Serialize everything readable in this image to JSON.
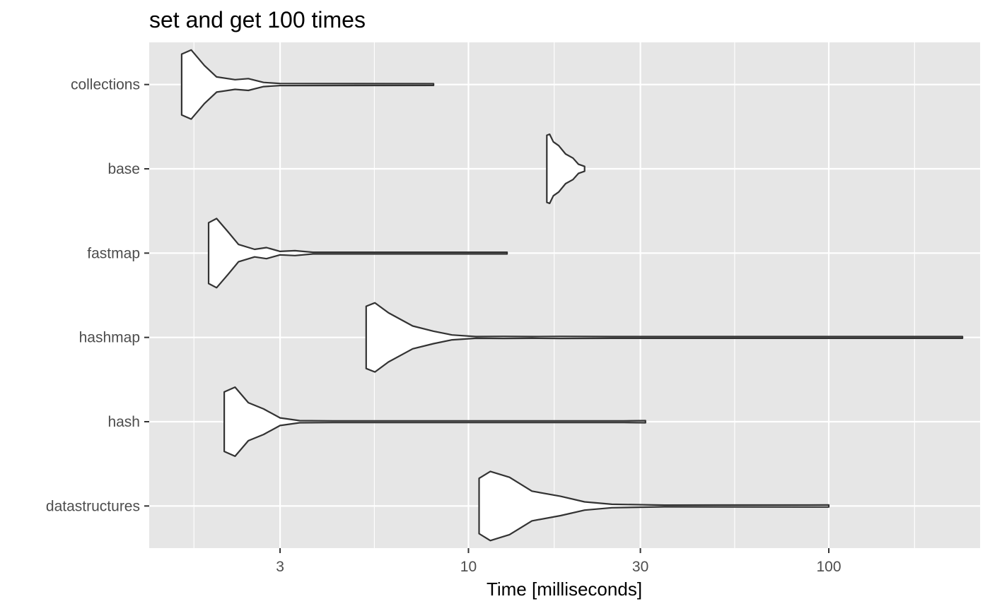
{
  "chart_data": {
    "type": "violin",
    "title": "set and get 100 times",
    "xlabel": "Time [milliseconds]",
    "ylabel": "",
    "x_scale": "log10",
    "xlim": [
      1.3,
      263
    ],
    "x_ticks": [
      {
        "value": 3,
        "label": "3"
      },
      {
        "value": 10,
        "label": "10"
      },
      {
        "value": 30,
        "label": "30"
      },
      {
        "value": 100,
        "label": "100"
      }
    ],
    "x_minor_ticks": [
      1.73,
      5.48,
      17.3,
      54.8,
      173
    ],
    "grid": true,
    "panel_background": "#e6e6e6",
    "grid_color": "#ffffff",
    "violin_fill": "#ffffff",
    "violin_stroke": "#333333",
    "categories": [
      "collections",
      "base",
      "fastmap",
      "hashmap",
      "hash",
      "datastructures"
    ],
    "series": [
      {
        "name": "collections",
        "min": 1.6,
        "max": 8.0,
        "density": [
          [
            1.6,
            0.88
          ],
          [
            1.7,
            1.0
          ],
          [
            1.85,
            0.55
          ],
          [
            2.0,
            0.22
          ],
          [
            2.25,
            0.14
          ],
          [
            2.45,
            0.17
          ],
          [
            2.7,
            0.06
          ],
          [
            3.0,
            0.03
          ],
          [
            8.0,
            0.01
          ]
        ]
      },
      {
        "name": "base",
        "min": 16.5,
        "max": 21.0,
        "density": [
          [
            16.5,
            0.97
          ],
          [
            16.8,
            1.0
          ],
          [
            17.2,
            0.78
          ],
          [
            17.8,
            0.67
          ],
          [
            18.6,
            0.43
          ],
          [
            19.5,
            0.31
          ],
          [
            20.2,
            0.13
          ],
          [
            21.0,
            0.07
          ]
        ]
      },
      {
        "name": "fastmap",
        "min": 1.9,
        "max": 12.8,
        "density": [
          [
            1.9,
            0.88
          ],
          [
            2.0,
            1.0
          ],
          [
            2.15,
            0.62
          ],
          [
            2.3,
            0.25
          ],
          [
            2.55,
            0.11
          ],
          [
            2.75,
            0.16
          ],
          [
            3.0,
            0.05
          ],
          [
            3.3,
            0.07
          ],
          [
            3.7,
            0.02
          ],
          [
            5.0,
            0.01
          ],
          [
            7.5,
            0.02
          ],
          [
            9.0,
            0.01
          ],
          [
            12.8,
            0.01
          ]
        ]
      },
      {
        "name": "hashmap",
        "min": 5.2,
        "max": 235,
        "density": [
          [
            5.2,
            0.9
          ],
          [
            5.5,
            1.0
          ],
          [
            6.0,
            0.71
          ],
          [
            7.0,
            0.33
          ],
          [
            8.0,
            0.18
          ],
          [
            9.0,
            0.07
          ],
          [
            10.5,
            0.02
          ],
          [
            12.5,
            0.03
          ],
          [
            15.0,
            0.02
          ],
          [
            18.0,
            0.03
          ],
          [
            25.0,
            0.01
          ],
          [
            235,
            0.02
          ]
        ]
      },
      {
        "name": "hash",
        "min": 2.1,
        "max": 31.0,
        "density": [
          [
            2.1,
            0.86
          ],
          [
            2.25,
            1.0
          ],
          [
            2.45,
            0.55
          ],
          [
            2.7,
            0.37
          ],
          [
            3.0,
            0.11
          ],
          [
            3.4,
            0.03
          ],
          [
            4.2,
            0.02
          ],
          [
            6.0,
            0.01
          ],
          [
            7.5,
            0.02
          ],
          [
            12.0,
            0.01
          ],
          [
            20.0,
            0.01
          ],
          [
            27.0,
            0.02
          ],
          [
            31.0,
            0.03
          ]
        ]
      },
      {
        "name": "datastructures",
        "min": 10.7,
        "max": 100,
        "density": [
          [
            10.7,
            0.8
          ],
          [
            11.5,
            1.0
          ],
          [
            13.0,
            0.83
          ],
          [
            15.0,
            0.43
          ],
          [
            18.0,
            0.28
          ],
          [
            21.0,
            0.12
          ],
          [
            25.0,
            0.05
          ],
          [
            35.0,
            0.02
          ],
          [
            100,
            0.03
          ]
        ]
      }
    ]
  }
}
